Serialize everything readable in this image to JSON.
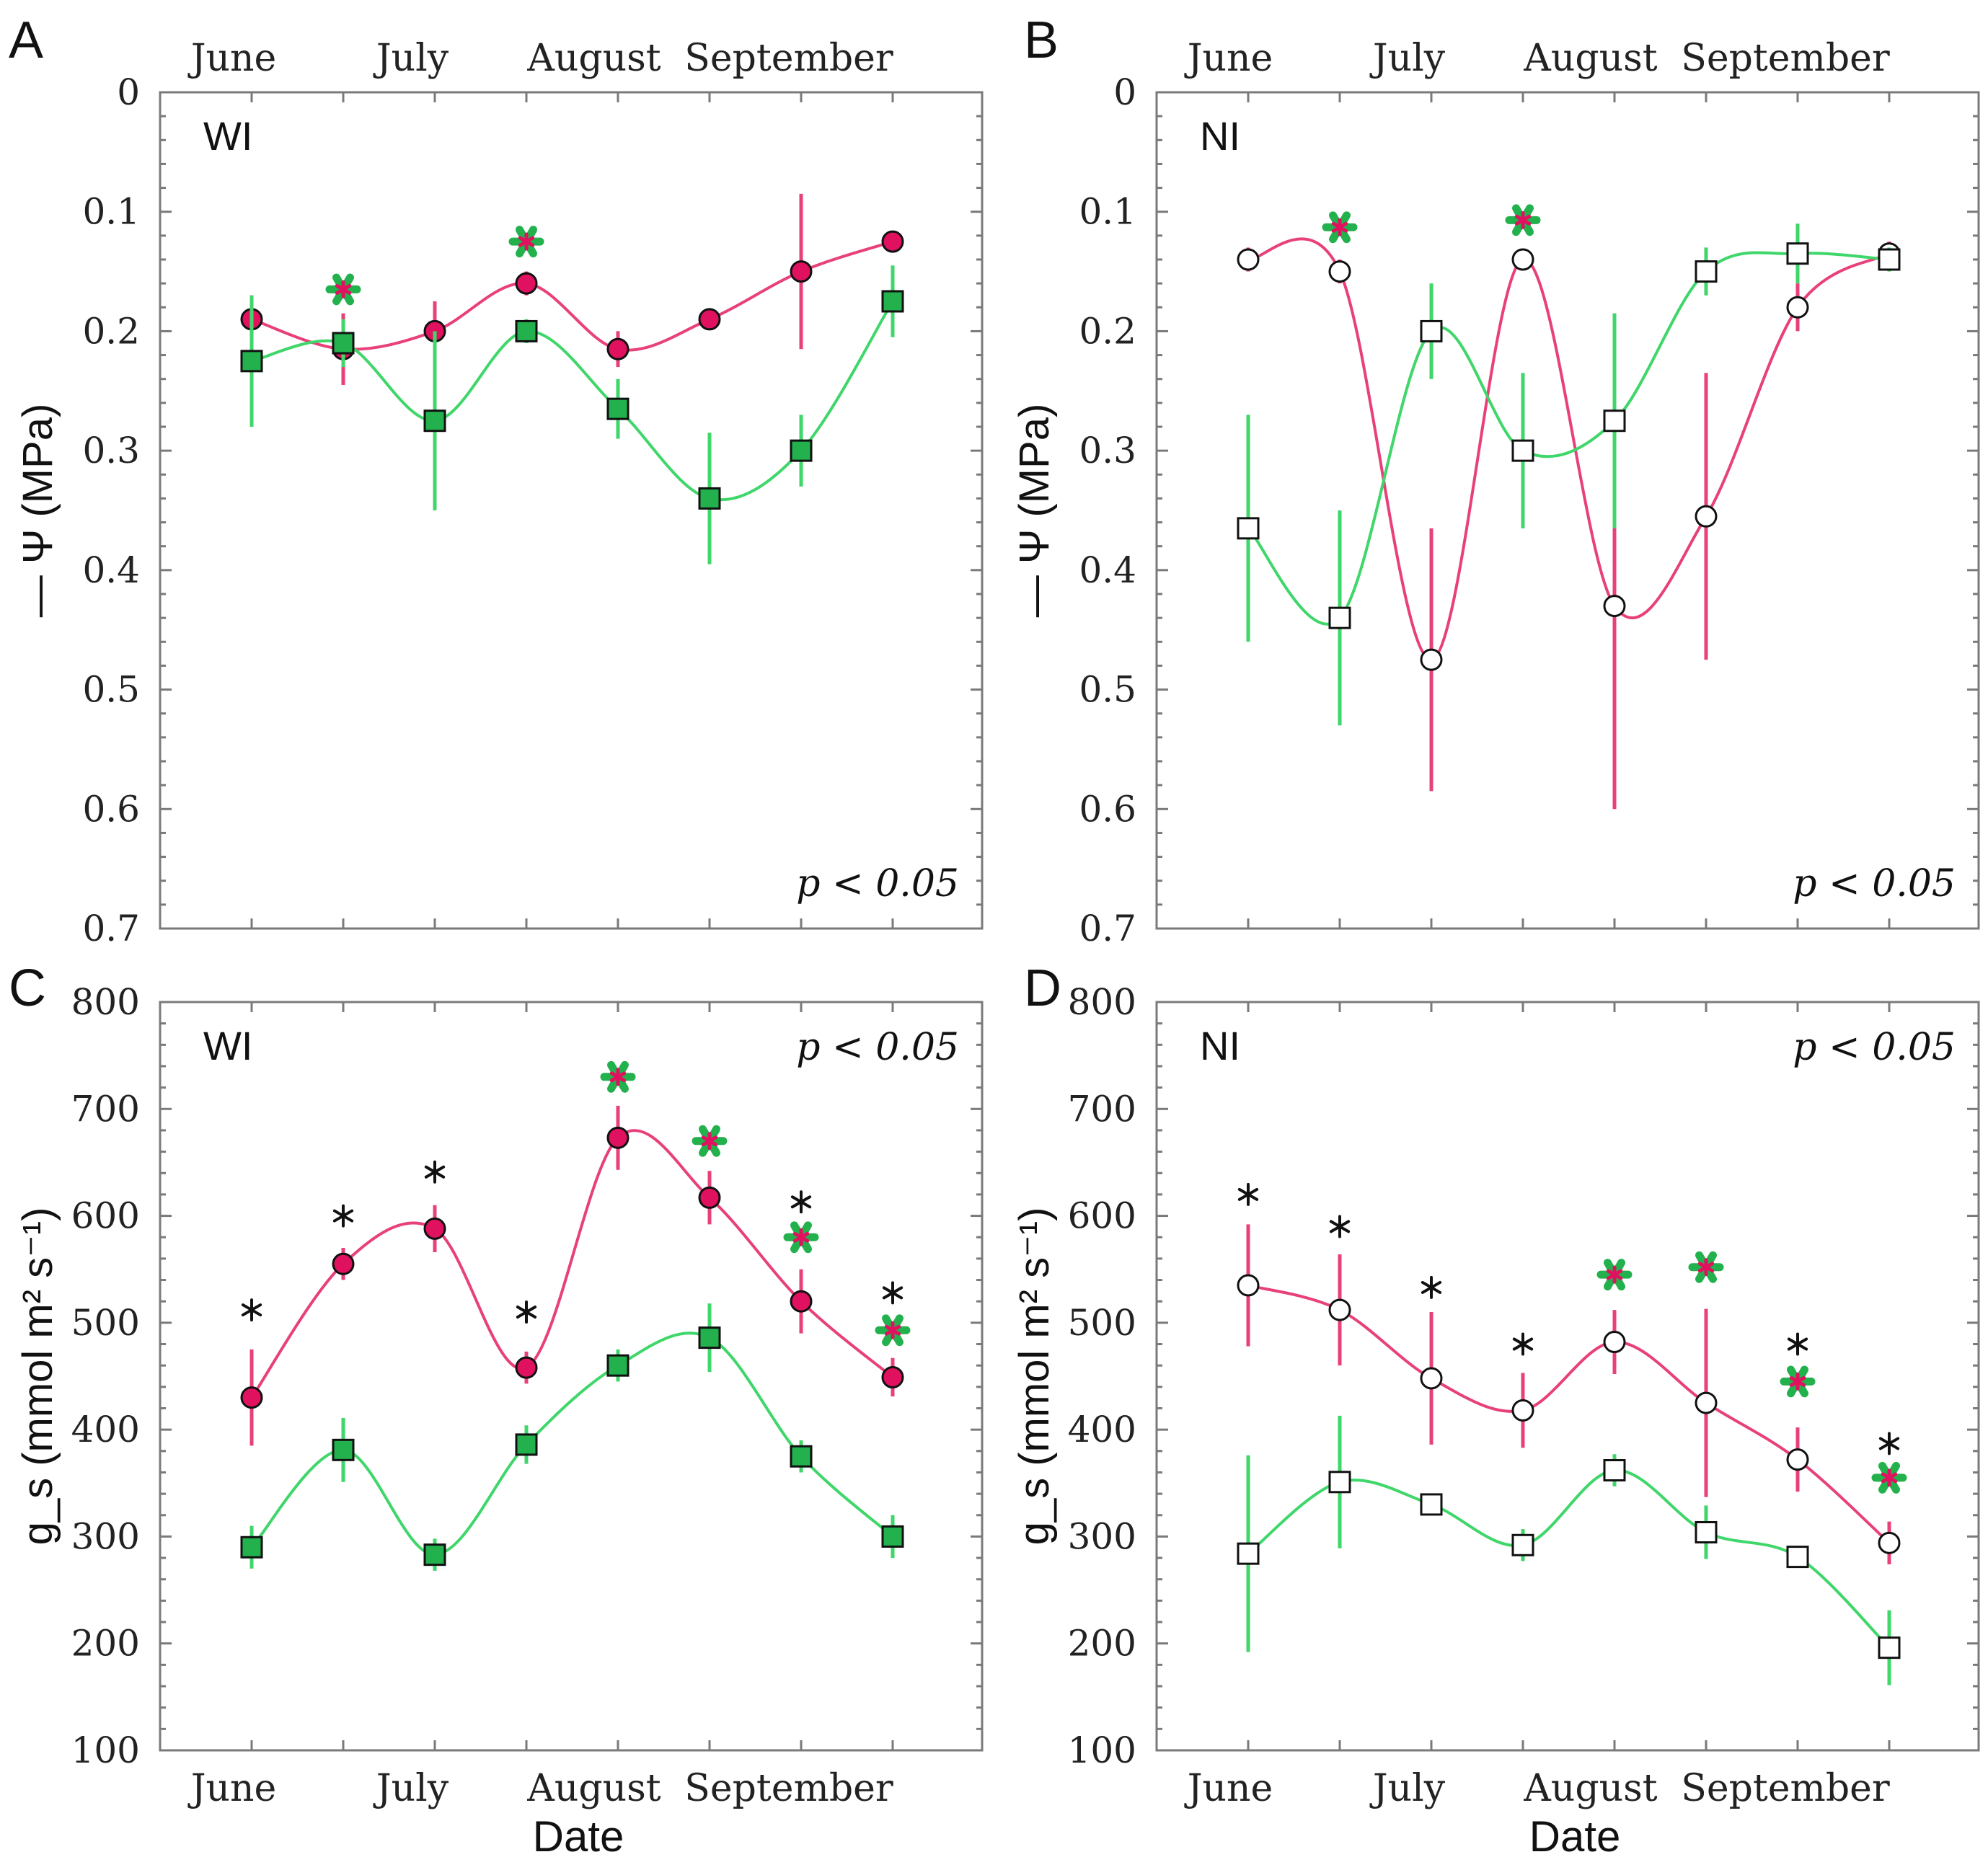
{
  "colors": {
    "pink": "#e0115f",
    "green": "#22b14c",
    "pinkLine": "#e8407a",
    "greenLine": "#3fd66a"
  },
  "chart_data": [
    {
      "id": "A",
      "letter": "A",
      "treatment": "WI",
      "type": "line",
      "ylabel": "— Ψ (MPa)",
      "xlabel": "",
      "ylim": [
        0,
        0.7
      ],
      "inverted": true,
      "ticks": [
        "0",
        "0.1",
        "0.2",
        "0.3",
        "0.4",
        "0.5",
        "0.6",
        "0.7"
      ],
      "months": [
        "June",
        "July",
        "August",
        "September"
      ],
      "month_axis": "top",
      "p_text": "p < 0.05",
      "p_pos": "bottom-right",
      "marker": "filled",
      "x": [
        1,
        2,
        3,
        4,
        5,
        6,
        7,
        8
      ],
      "series": [
        {
          "name": "pink",
          "values": [
            0.19,
            0.215,
            0.2,
            0.16,
            0.215,
            0.19,
            0.15,
            0.125
          ],
          "err": [
            0.02,
            0.03,
            0.025,
            0.01,
            0.015,
            0.005,
            0.065,
            0.005
          ]
        },
        {
          "name": "green",
          "values": [
            0.225,
            0.21,
            0.275,
            0.2,
            0.265,
            0.34,
            0.3,
            0.175
          ],
          "err": [
            0.055,
            0.02,
            0.075,
            0.01,
            0.025,
            0.055,
            0.03,
            0.03
          ]
        }
      ],
      "markers": [
        {
          "x": 2,
          "y": 0.165,
          "kind": "green-red"
        },
        {
          "x": 4,
          "y": 0.125,
          "kind": "green-red"
        }
      ]
    },
    {
      "id": "B",
      "letter": "B",
      "treatment": "NI",
      "type": "line",
      "ylabel": "— Ψ (MPa)",
      "xlabel": "",
      "ylim": [
        0,
        0.7
      ],
      "inverted": true,
      "ticks": [
        "0",
        "0.1",
        "0.2",
        "0.3",
        "0.4",
        "0.5",
        "0.6",
        "0.7"
      ],
      "months": [
        "June",
        "July",
        "August",
        "September"
      ],
      "month_axis": "top",
      "p_text": "p < 0.05",
      "p_pos": "bottom-right",
      "marker": "open",
      "x": [
        1,
        2,
        3,
        4,
        5,
        6,
        7,
        8
      ],
      "series": [
        {
          "name": "pink",
          "values": [
            0.14,
            0.15,
            0.475,
            0.14,
            0.43,
            0.355,
            0.18,
            0.135
          ],
          "err": [
            0.01,
            0.01,
            0.11,
            0.005,
            0.17,
            0.12,
            0.02,
            0.01
          ]
        },
        {
          "name": "green",
          "values": [
            0.365,
            0.44,
            0.2,
            0.3,
            0.275,
            0.15,
            0.135,
            0.14
          ],
          "err": [
            0.095,
            0.09,
            0.04,
            0.065,
            0.09,
            0.02,
            0.025,
            0.01
          ]
        }
      ],
      "markers": [
        {
          "x": 2,
          "y": 0.113,
          "kind": "green-red"
        },
        {
          "x": 4,
          "y": 0.107,
          "kind": "green-red"
        }
      ]
    },
    {
      "id": "C",
      "letter": "C",
      "treatment": "WI",
      "type": "line",
      "ylabel": "g_s (mmol m² s⁻¹)",
      "xlabel": "Date",
      "ylim": [
        100,
        800
      ],
      "inverted": false,
      "ticks": [
        "100",
        "200",
        "300",
        "400",
        "500",
        "600",
        "700",
        "800"
      ],
      "months": [
        "June",
        "July",
        "August",
        "September"
      ],
      "month_axis": "bottom",
      "p_text": "p < 0.05",
      "p_pos": "top-right",
      "marker": "filled",
      "x": [
        1,
        2,
        3,
        4,
        5,
        6,
        7,
        8
      ],
      "series": [
        {
          "name": "pink",
          "values": [
            430,
            555,
            588,
            458,
            673,
            617,
            520,
            449
          ],
          "err": [
            45,
            15,
            22,
            15,
            30,
            25,
            30,
            18
          ]
        },
        {
          "name": "green",
          "values": [
            290,
            381,
            283,
            386,
            460,
            486,
            375,
            300
          ],
          "err": [
            20,
            30,
            15,
            18,
            15,
            32,
            15,
            20
          ]
        }
      ],
      "markers": [
        {
          "x": 1,
          "y": 512,
          "kind": "black"
        },
        {
          "x": 2,
          "y": 600,
          "kind": "black"
        },
        {
          "x": 3,
          "y": 641,
          "kind": "black"
        },
        {
          "x": 4,
          "y": 510,
          "kind": "black"
        },
        {
          "x": 5,
          "y": 730,
          "kind": "green-red"
        },
        {
          "x": 6,
          "y": 670,
          "kind": "green-red"
        },
        {
          "x": 7,
          "y": 613,
          "kind": "black"
        },
        {
          "x": 7,
          "y": 580,
          "kind": "green-red"
        },
        {
          "x": 8,
          "y": 528,
          "kind": "black"
        },
        {
          "x": 8,
          "y": 493,
          "kind": "green-red"
        }
      ]
    },
    {
      "id": "D",
      "letter": "D",
      "treatment": "NI",
      "type": "line",
      "ylabel": "g_s (mmol m² s⁻¹)",
      "xlabel": "Date",
      "ylim": [
        100,
        800
      ],
      "inverted": false,
      "ticks": [
        "100",
        "200",
        "300",
        "400",
        "500",
        "600",
        "700",
        "800"
      ],
      "months": [
        "June",
        "July",
        "August",
        "September"
      ],
      "month_axis": "bottom",
      "p_text": "p < 0.05",
      "p_pos": "top-right",
      "marker": "open",
      "x": [
        1,
        2,
        3,
        4,
        5,
        6,
        7,
        8
      ],
      "series": [
        {
          "name": "pink",
          "values": [
            535,
            512,
            448,
            418,
            482,
            425,
            372,
            294
          ],
          "err": [
            57,
            52,
            62,
            35,
            30,
            88,
            30,
            20
          ]
        },
        {
          "name": "green",
          "values": [
            284,
            351,
            330,
            292,
            362,
            304,
            281,
            196
          ],
          "err": [
            92,
            62,
            10,
            15,
            15,
            25,
            10,
            35
          ]
        }
      ],
      "markers": [
        {
          "x": 1,
          "y": 620,
          "kind": "black"
        },
        {
          "x": 2,
          "y": 590,
          "kind": "black"
        },
        {
          "x": 3,
          "y": 533,
          "kind": "black"
        },
        {
          "x": 4,
          "y": 480,
          "kind": "black"
        },
        {
          "x": 5,
          "y": 545,
          "kind": "green-red"
        },
        {
          "x": 6,
          "y": 552,
          "kind": "green-red"
        },
        {
          "x": 7,
          "y": 480,
          "kind": "black"
        },
        {
          "x": 7,
          "y": 445,
          "kind": "green-red"
        },
        {
          "x": 8,
          "y": 387,
          "kind": "black"
        },
        {
          "x": 8,
          "y": 355,
          "kind": "green-red"
        }
      ]
    }
  ]
}
